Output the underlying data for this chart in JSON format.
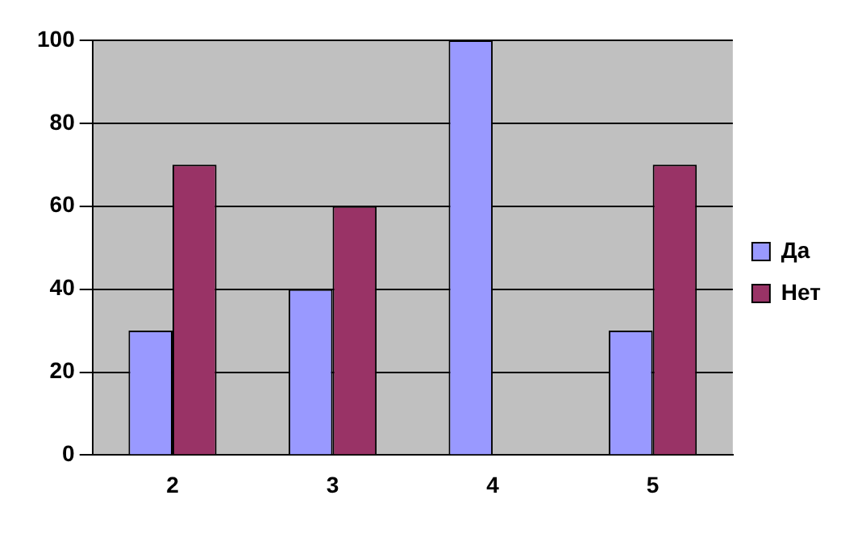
{
  "chart_data": {
    "type": "bar",
    "categories": [
      "2",
      "3",
      "4",
      "5"
    ],
    "series": [
      {
        "name": "Да",
        "color": "#9999ff",
        "values": [
          30,
          40,
          100,
          30
        ]
      },
      {
        "name": "Нет",
        "color": "#993366",
        "values": [
          70,
          60,
          0,
          70
        ]
      }
    ],
    "ylim": [
      0,
      100
    ],
    "yticks": [
      0,
      20,
      40,
      60,
      80,
      100
    ],
    "grid": "y",
    "legend": "right"
  }
}
